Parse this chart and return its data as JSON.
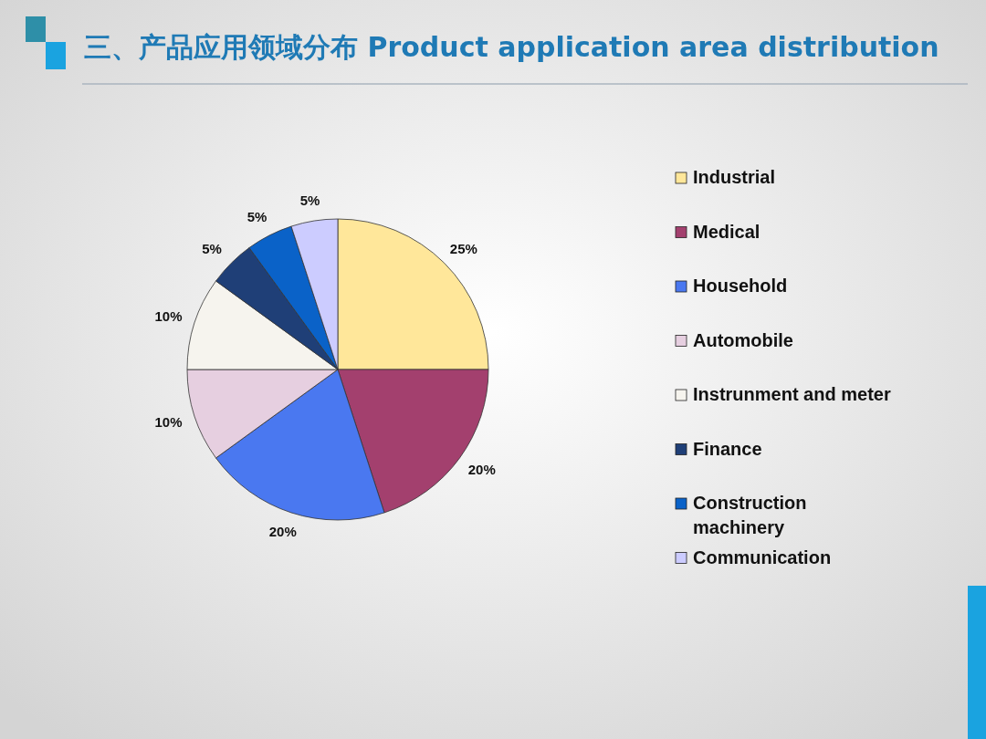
{
  "chart_data": {
    "type": "pie",
    "title": "三、产品应用领域分布 Product application area distribution",
    "categories": [
      "Industrial",
      "Medical",
      "Household",
      "Automobile",
      "Instrunment and meter",
      "Finance",
      "Construction machinery",
      "Communication"
    ],
    "values": [
      25,
      20,
      20,
      10,
      10,
      5,
      5,
      5
    ],
    "value_labels": [
      "25%",
      "20%",
      "20%",
      "10%",
      "10%",
      "5%",
      "5%",
      "5%"
    ],
    "colors": [
      "#ffe79a",
      "#a3406e",
      "#4a78f0",
      "#e6cfe0",
      "#f6f4ee",
      "#1f3f77",
      "#0a62c8",
      "#ccccff"
    ],
    "legend": "right"
  }
}
